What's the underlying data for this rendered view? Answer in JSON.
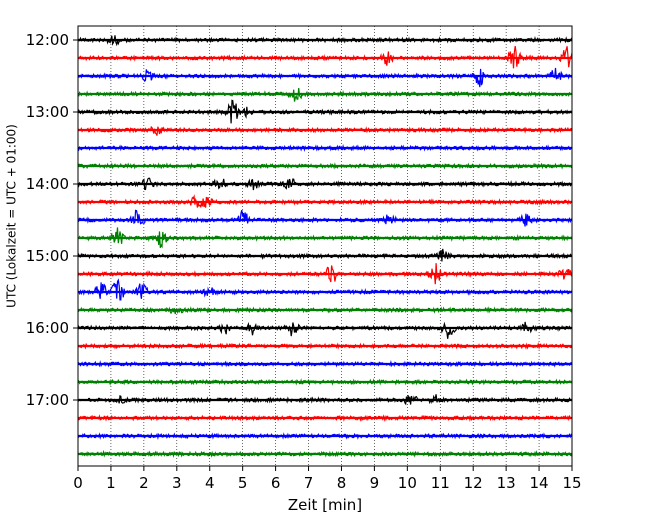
{
  "chart_data": {
    "type": "line",
    "xlabel": "Zeit  [min]",
    "ylabel": "UTC (Lokalzeit = UTC + 01:00)",
    "xlim": [
      0,
      15
    ],
    "x_ticks": [
      "0",
      "1",
      "2",
      "3",
      "4",
      "5",
      "6",
      "7",
      "8",
      "9",
      "10",
      "11",
      "12",
      "13",
      "14",
      "15"
    ],
    "y_tick_labels": [
      "12:00",
      "13:00",
      "14:00",
      "15:00",
      "16:00",
      "17:00"
    ],
    "grid": "vertical dotted",
    "colors": [
      "#000000",
      "#ff0000",
      "#0000ff",
      "#008000"
    ],
    "traces": [
      {
        "start": "12:00",
        "color": "#000000",
        "events": [
          {
            "t": 1.1,
            "a": 0.5
          }
        ]
      },
      {
        "start": "12:15",
        "color": "#ff0000",
        "events": [
          {
            "t": 9.4,
            "a": 0.6
          },
          {
            "t": 13.25,
            "a": 1.1
          },
          {
            "t": 14.85,
            "a": 0.9
          }
        ]
      },
      {
        "start": "12:30",
        "color": "#0000ff",
        "events": [
          {
            "t": 2.1,
            "a": 0.5
          },
          {
            "t": 12.2,
            "a": 0.9
          },
          {
            "t": 14.5,
            "a": 0.6
          }
        ]
      },
      {
        "start": "12:45",
        "color": "#008000",
        "events": [
          {
            "t": 6.6,
            "a": 0.8
          }
        ]
      },
      {
        "start": "13:00",
        "color": "#000000",
        "events": [
          {
            "t": 4.7,
            "a": 1.2
          },
          {
            "t": 5.05,
            "a": 0.5
          }
        ]
      },
      {
        "start": "13:15",
        "color": "#ff0000",
        "events": [
          {
            "t": 2.4,
            "a": 0.4
          }
        ]
      },
      {
        "start": "13:30",
        "color": "#0000ff",
        "events": []
      },
      {
        "start": "13:45",
        "color": "#008000",
        "events": []
      },
      {
        "start": "14:00",
        "color": "#000000",
        "events": [
          {
            "t": 2.1,
            "a": 0.5
          },
          {
            "t": 4.3,
            "a": 0.6
          },
          {
            "t": 5.3,
            "a": 0.5
          },
          {
            "t": 6.4,
            "a": 0.7
          }
        ]
      },
      {
        "start": "14:15",
        "color": "#ff0000",
        "events": [
          {
            "t": 3.6,
            "a": 0.5
          },
          {
            "t": 3.9,
            "a": 0.4
          }
        ]
      },
      {
        "start": "14:30",
        "color": "#0000ff",
        "events": [
          {
            "t": 1.8,
            "a": 0.9
          },
          {
            "t": 5.0,
            "a": 0.9
          },
          {
            "t": 9.5,
            "a": 0.7
          },
          {
            "t": 13.6,
            "a": 0.5
          }
        ]
      },
      {
        "start": "14:45",
        "color": "#008000",
        "events": [
          {
            "t": 1.2,
            "a": 0.8
          },
          {
            "t": 2.5,
            "a": 0.9
          }
        ]
      },
      {
        "start": "15:00",
        "color": "#000000",
        "events": [
          {
            "t": 11.1,
            "a": 0.6
          }
        ]
      },
      {
        "start": "15:15",
        "color": "#ff0000",
        "events": [
          {
            "t": 7.7,
            "a": 0.9
          },
          {
            "t": 10.85,
            "a": 0.9
          },
          {
            "t": 14.8,
            "a": 0.5
          }
        ]
      },
      {
        "start": "15:30",
        "color": "#0000ff",
        "events": [
          {
            "t": 0.7,
            "a": 0.8
          },
          {
            "t": 1.2,
            "a": 1.2
          },
          {
            "t": 1.9,
            "a": 1.0
          },
          {
            "t": 4.0,
            "a": 0.4
          }
        ]
      },
      {
        "start": "15:45",
        "color": "#008000",
        "events": [
          {
            "t": 3.0,
            "a": 0.4
          }
        ]
      },
      {
        "start": "16:00",
        "color": "#000000",
        "events": [
          {
            "t": 4.5,
            "a": 0.6
          },
          {
            "t": 5.3,
            "a": 0.5
          },
          {
            "t": 6.5,
            "a": 0.7
          },
          {
            "t": 11.25,
            "a": 0.9
          },
          {
            "t": 13.6,
            "a": 0.5
          }
        ]
      },
      {
        "start": "16:15",
        "color": "#ff0000",
        "events": []
      },
      {
        "start": "16:30",
        "color": "#0000ff",
        "events": []
      },
      {
        "start": "16:45",
        "color": "#008000",
        "events": []
      },
      {
        "start": "17:00",
        "color": "#000000",
        "events": [
          {
            "t": 1.3,
            "a": 0.3
          },
          {
            "t": 10.1,
            "a": 0.5
          },
          {
            "t": 10.9,
            "a": 0.4
          }
        ]
      },
      {
        "start": "17:15",
        "color": "#ff0000",
        "events": []
      },
      {
        "start": "17:30",
        "color": "#0000ff",
        "events": []
      },
      {
        "start": "17:45",
        "color": "#008000",
        "events": []
      }
    ]
  }
}
